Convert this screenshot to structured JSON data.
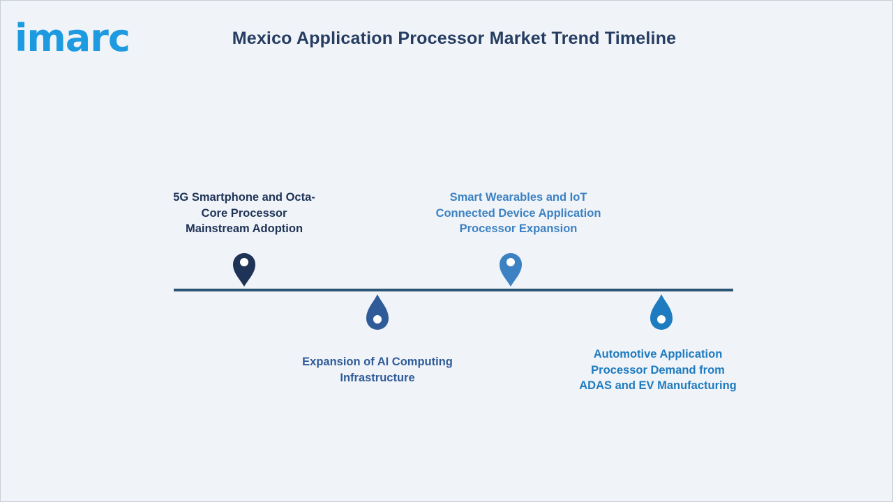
{
  "logo": {
    "text": "imarc"
  },
  "title": "Mexico Application Processor Market Trend Timeline",
  "colors": {
    "axis": "#2c5575",
    "background": "#f0f3f8",
    "title": "#263d62"
  },
  "milestones": [
    {
      "lines": [
        "5G Smartphone and Octa-",
        "Core Processor",
        "Mainstream Adoption"
      ],
      "color": "#1e3356",
      "pin": "map-pin-icon"
    },
    {
      "lines": [
        "Expansion of AI Computing",
        "Infrastructure"
      ],
      "color": "#2f5c99",
      "pin": "drop-pin-icon"
    },
    {
      "lines": [
        "Smart Wearables and IoT",
        "Connected Device Application",
        "Processor Expansion"
      ],
      "color": "#3c82c2",
      "pin": "map-pin-icon"
    },
    {
      "lines": [
        "Automotive Application",
        "Processor Demand from",
        "ADAS and EV Manufacturing"
      ],
      "color": "#1e7bbf",
      "pin": "drop-pin-icon"
    }
  ]
}
